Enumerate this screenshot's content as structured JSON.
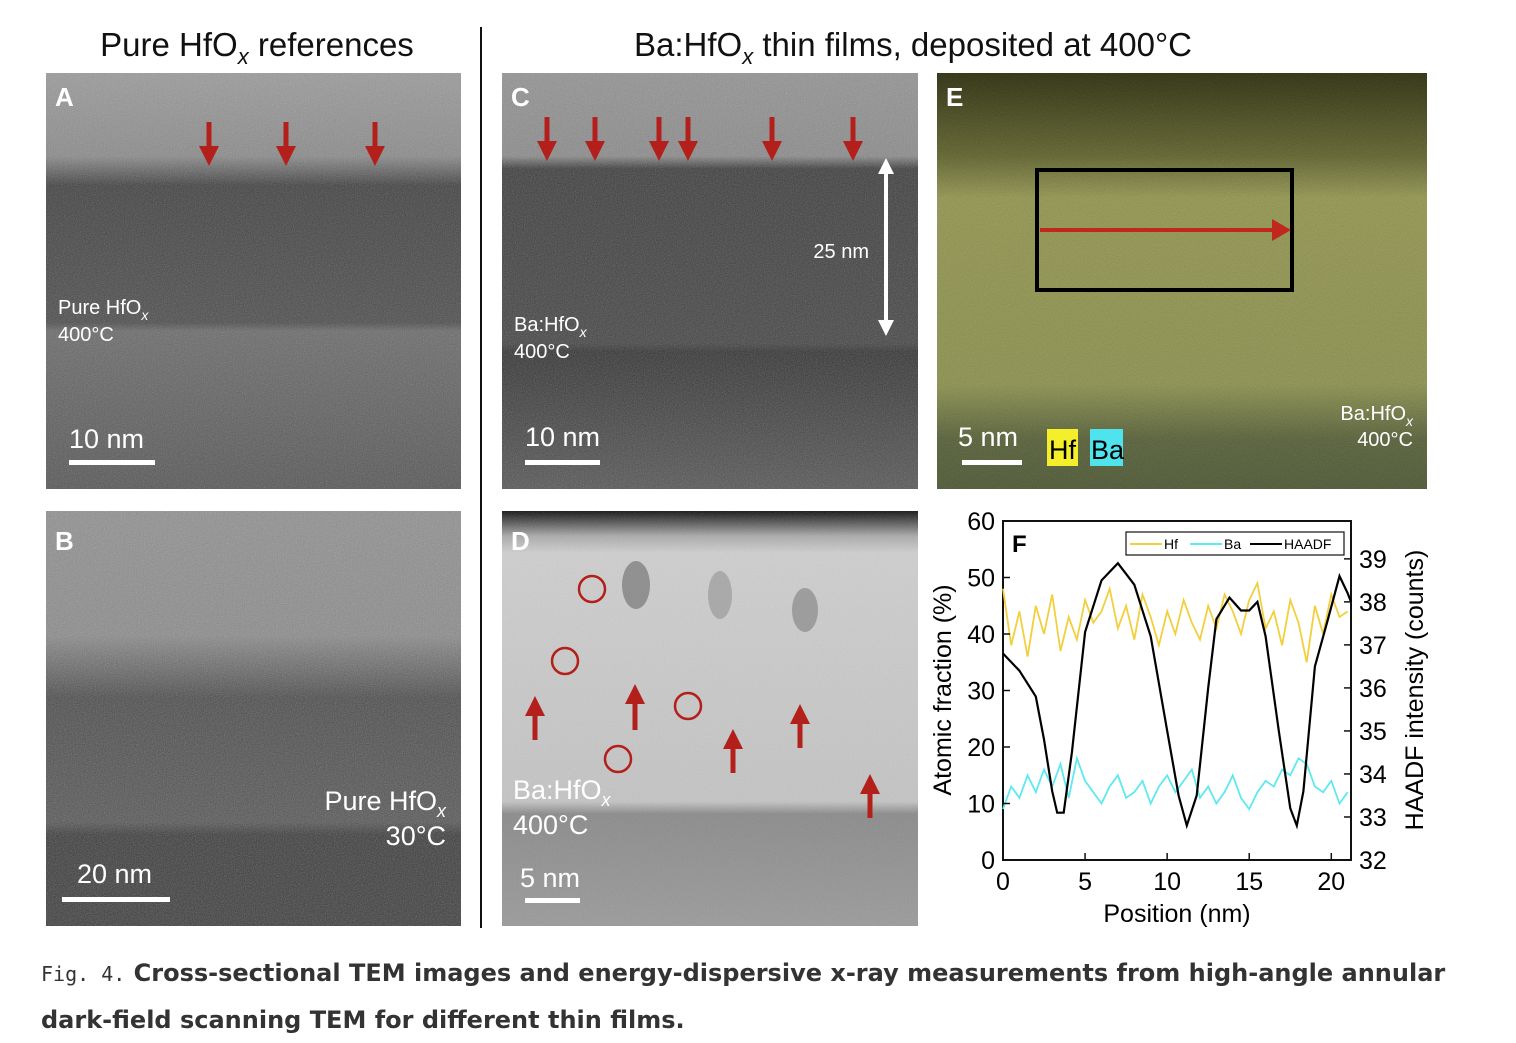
{
  "headings": {
    "left": {
      "main": "Pure HfO",
      "sub": "x",
      "rest": " references"
    },
    "right": {
      "main": "Ba:HfO",
      "sub": "x",
      "rest": " thin films, deposited at 400°C"
    }
  },
  "panels": {
    "A": {
      "letter": "A",
      "sample": "Pure HfO",
      "sample_sub": "x",
      "temp": "400°C",
      "scale": "10 nm"
    },
    "B": {
      "letter": "B",
      "sample": "Pure HfO",
      "sample_sub": "x",
      "temp": "30°C",
      "scale": "20 nm"
    },
    "C": {
      "letter": "C",
      "sample": "Ba:HfO",
      "sample_sub": "x",
      "temp": "400°C",
      "scale": "10 nm",
      "thickness": "25 nm"
    },
    "D": {
      "letter": "D",
      "sample": "Ba:HfO",
      "sample_sub": "x",
      "temp": "400°C",
      "scale": "5 nm"
    },
    "E": {
      "letter": "E",
      "sample": "Ba:HfO",
      "sample_sub": "x",
      "temp": "400°C",
      "scale": "5 nm",
      "legend_hf": "Hf",
      "legend_ba": "Ba"
    }
  },
  "colors": {
    "arrow": "#b3201c",
    "hf": "#f2cf3c",
    "ba": "#5ee9f0",
    "haadf": "#000000",
    "hf_tag": "#f5ee2a",
    "ba_tag": "#4fe3ee"
  },
  "chart_data": {
    "type": "line",
    "panel_letter": "F",
    "xlabel": "Position (nm)",
    "ylabel": "Atomic fraction (%)",
    "y2label": "HAADF intensity (counts)",
    "xlim": [
      0,
      21.2
    ],
    "ylim": [
      0,
      60
    ],
    "y2lim": [
      32,
      39.88
    ],
    "xticks": [
      0,
      5,
      10,
      15,
      20
    ],
    "yticks": [
      0,
      10,
      20,
      30,
      40,
      50,
      60
    ],
    "y2ticks": [
      32,
      33,
      34,
      35,
      36,
      37,
      38,
      39
    ],
    "legend_position": "top-right",
    "series": [
      {
        "name": "Hf",
        "axis": "left",
        "color": "#f2cf3c",
        "x": [
          0,
          0.5,
          1,
          1.5,
          2,
          2.5,
          3,
          3.5,
          4,
          4.5,
          5,
          5.5,
          6,
          6.5,
          7,
          7.5,
          8,
          8.5,
          9,
          9.5,
          10,
          10.5,
          11,
          11.5,
          12,
          12.5,
          13,
          13.5,
          14,
          14.5,
          15,
          15.5,
          16,
          16.5,
          17,
          17.5,
          18,
          18.5,
          19,
          19.5,
          20,
          20.5,
          21
        ],
        "y": [
          48,
          38,
          44,
          36,
          45,
          40,
          47,
          37,
          43,
          39,
          46,
          42,
          44,
          48,
          41,
          45,
          39,
          47,
          43,
          38,
          44,
          40,
          46,
          42,
          39,
          45,
          41,
          47,
          44,
          40,
          46,
          49,
          41,
          44,
          38,
          46,
          42,
          35,
          45,
          40,
          47,
          43,
          44
        ]
      },
      {
        "name": "Ba",
        "axis": "left",
        "color": "#5ee9f0",
        "x": [
          0,
          0.5,
          1,
          1.5,
          2,
          2.5,
          3,
          3.5,
          4,
          4.5,
          5,
          5.5,
          6,
          6.5,
          7,
          7.5,
          8,
          8.5,
          9,
          9.5,
          10,
          10.5,
          11,
          11.5,
          12,
          12.5,
          13,
          13.5,
          14,
          14.5,
          15,
          15.5,
          16,
          16.5,
          17,
          17.5,
          18,
          18.5,
          19,
          19.5,
          20,
          20.5,
          21
        ],
        "y": [
          9,
          13,
          11,
          15,
          12,
          16,
          13,
          17,
          11,
          18,
          14,
          12,
          10,
          13,
          15,
          11,
          12,
          14,
          10,
          13,
          15,
          12,
          14,
          16,
          11,
          13,
          10,
          12,
          15,
          11,
          9,
          12,
          14,
          13,
          16,
          15,
          18,
          17,
          13,
          12,
          14,
          10,
          12
        ]
      },
      {
        "name": "HAADF",
        "axis": "right",
        "color": "#000000",
        "x": [
          0,
          1,
          2,
          2.5,
          3,
          3.3,
          3.7,
          4.2,
          5,
          6,
          7,
          8,
          9,
          10,
          10.7,
          11.2,
          11.8,
          12.5,
          13,
          13.8,
          14.5,
          15,
          15.5,
          16,
          16.8,
          17.5,
          17.9,
          18.3,
          19,
          19.8,
          20.5,
          21,
          21.2
        ],
        "y": [
          36.8,
          36.4,
          35.8,
          34.8,
          33.6,
          33.1,
          33.1,
          34.5,
          37.3,
          38.5,
          38.9,
          38.4,
          37.2,
          35.0,
          33.5,
          32.8,
          33.5,
          36.0,
          37.6,
          38.1,
          37.8,
          37.8,
          38.0,
          37.2,
          35.0,
          33.2,
          32.8,
          33.6,
          36.5,
          37.6,
          38.6,
          38.2,
          38.0
        ]
      }
    ]
  },
  "caption": {
    "label": "Fig. 4.",
    "text": " Cross-sectional TEM images and energy-dispersive x-ray measurements from high-angle annular dark-field scanning TEM for different thin films."
  }
}
